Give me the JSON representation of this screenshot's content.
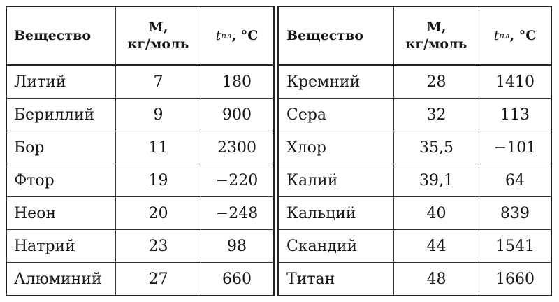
{
  "header": {
    "substance": "Вещество",
    "molar_mass_line1": "M,",
    "molar_mass_line2": "кг/моль",
    "temp_symbol": "t",
    "temp_subscript": "пл",
    "temp_unit": ", °C"
  },
  "left_rows": [
    {
      "name": "Литий",
      "mass": "7",
      "temp": "180"
    },
    {
      "name": "Бериллий",
      "mass": "9",
      "temp": "900"
    },
    {
      "name": "Бор",
      "mass": "11",
      "temp": "2300"
    },
    {
      "name": "Фтор",
      "mass": "19",
      "temp": "−220"
    },
    {
      "name": "Неон",
      "mass": "20",
      "temp": "−248"
    },
    {
      "name": "Натрий",
      "mass": "23",
      "temp": "98"
    },
    {
      "name": "Алюминий",
      "mass": "27",
      "temp": "660"
    }
  ],
  "right_rows": [
    {
      "name": "Кремний",
      "mass": "28",
      "temp": "1410"
    },
    {
      "name": "Сера",
      "mass": "32",
      "temp": "113"
    },
    {
      "name": "Хлор",
      "mass": "35,5",
      "temp": "−101"
    },
    {
      "name": "Калий",
      "mass": "39,1",
      "temp": "64"
    },
    {
      "name": "Кальций",
      "mass": "40",
      "temp": "839"
    },
    {
      "name": "Скандий",
      "mass": "44",
      "temp": "1541"
    },
    {
      "name": "Титан",
      "mass": "48",
      "temp": "1660"
    }
  ]
}
